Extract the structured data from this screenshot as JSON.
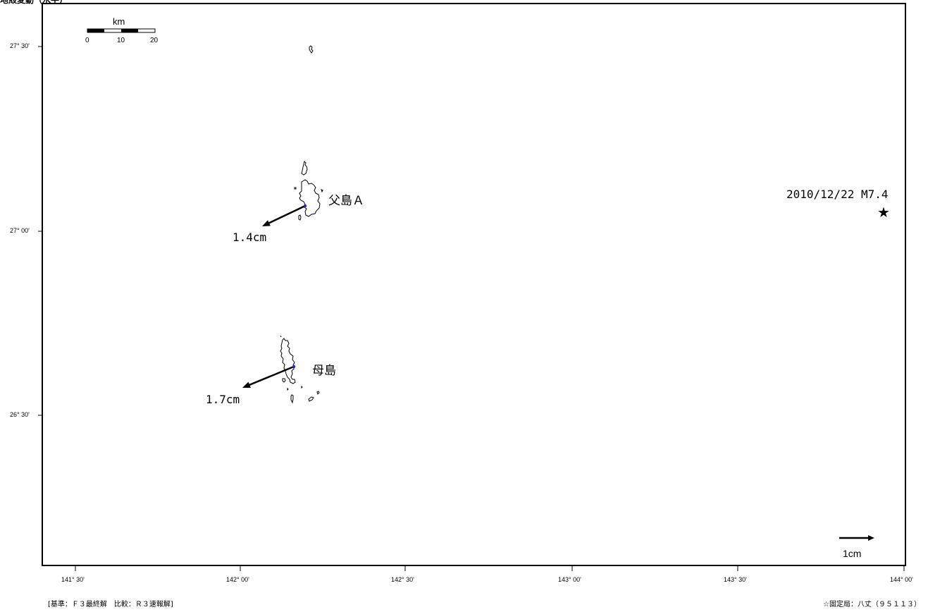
{
  "header": {
    "caption": "地殻変動（水平）"
  },
  "map": {
    "lat_ticks": [
      "27° 30'",
      "27° 00'",
      "26° 30'"
    ],
    "lon_ticks": [
      "141° 30'",
      "142° 00'",
      "142° 30'",
      "143° 00'",
      "143° 30'",
      "144° 00'"
    ]
  },
  "scale_bar": {
    "unit": "km",
    "labels": [
      "0",
      "10",
      "20"
    ]
  },
  "stations": [
    {
      "name": "父島Ａ",
      "displacement": "1.4cm"
    },
    {
      "name": "母島",
      "displacement": "1.7cm"
    }
  ],
  "earthquake": {
    "label": "2010/12/22 M7.4",
    "symbol": "★"
  },
  "reference_vector": {
    "label": "1cm"
  },
  "footer": {
    "basis": "[基準：Ｆ３最終解　比較：Ｒ３速報解]",
    "fixed_station": "☆固定局：八丈（９５１１３）"
  },
  "colors": {
    "vector": "#000000",
    "station_marker": "#1a2bd6",
    "frame": "#000000"
  }
}
